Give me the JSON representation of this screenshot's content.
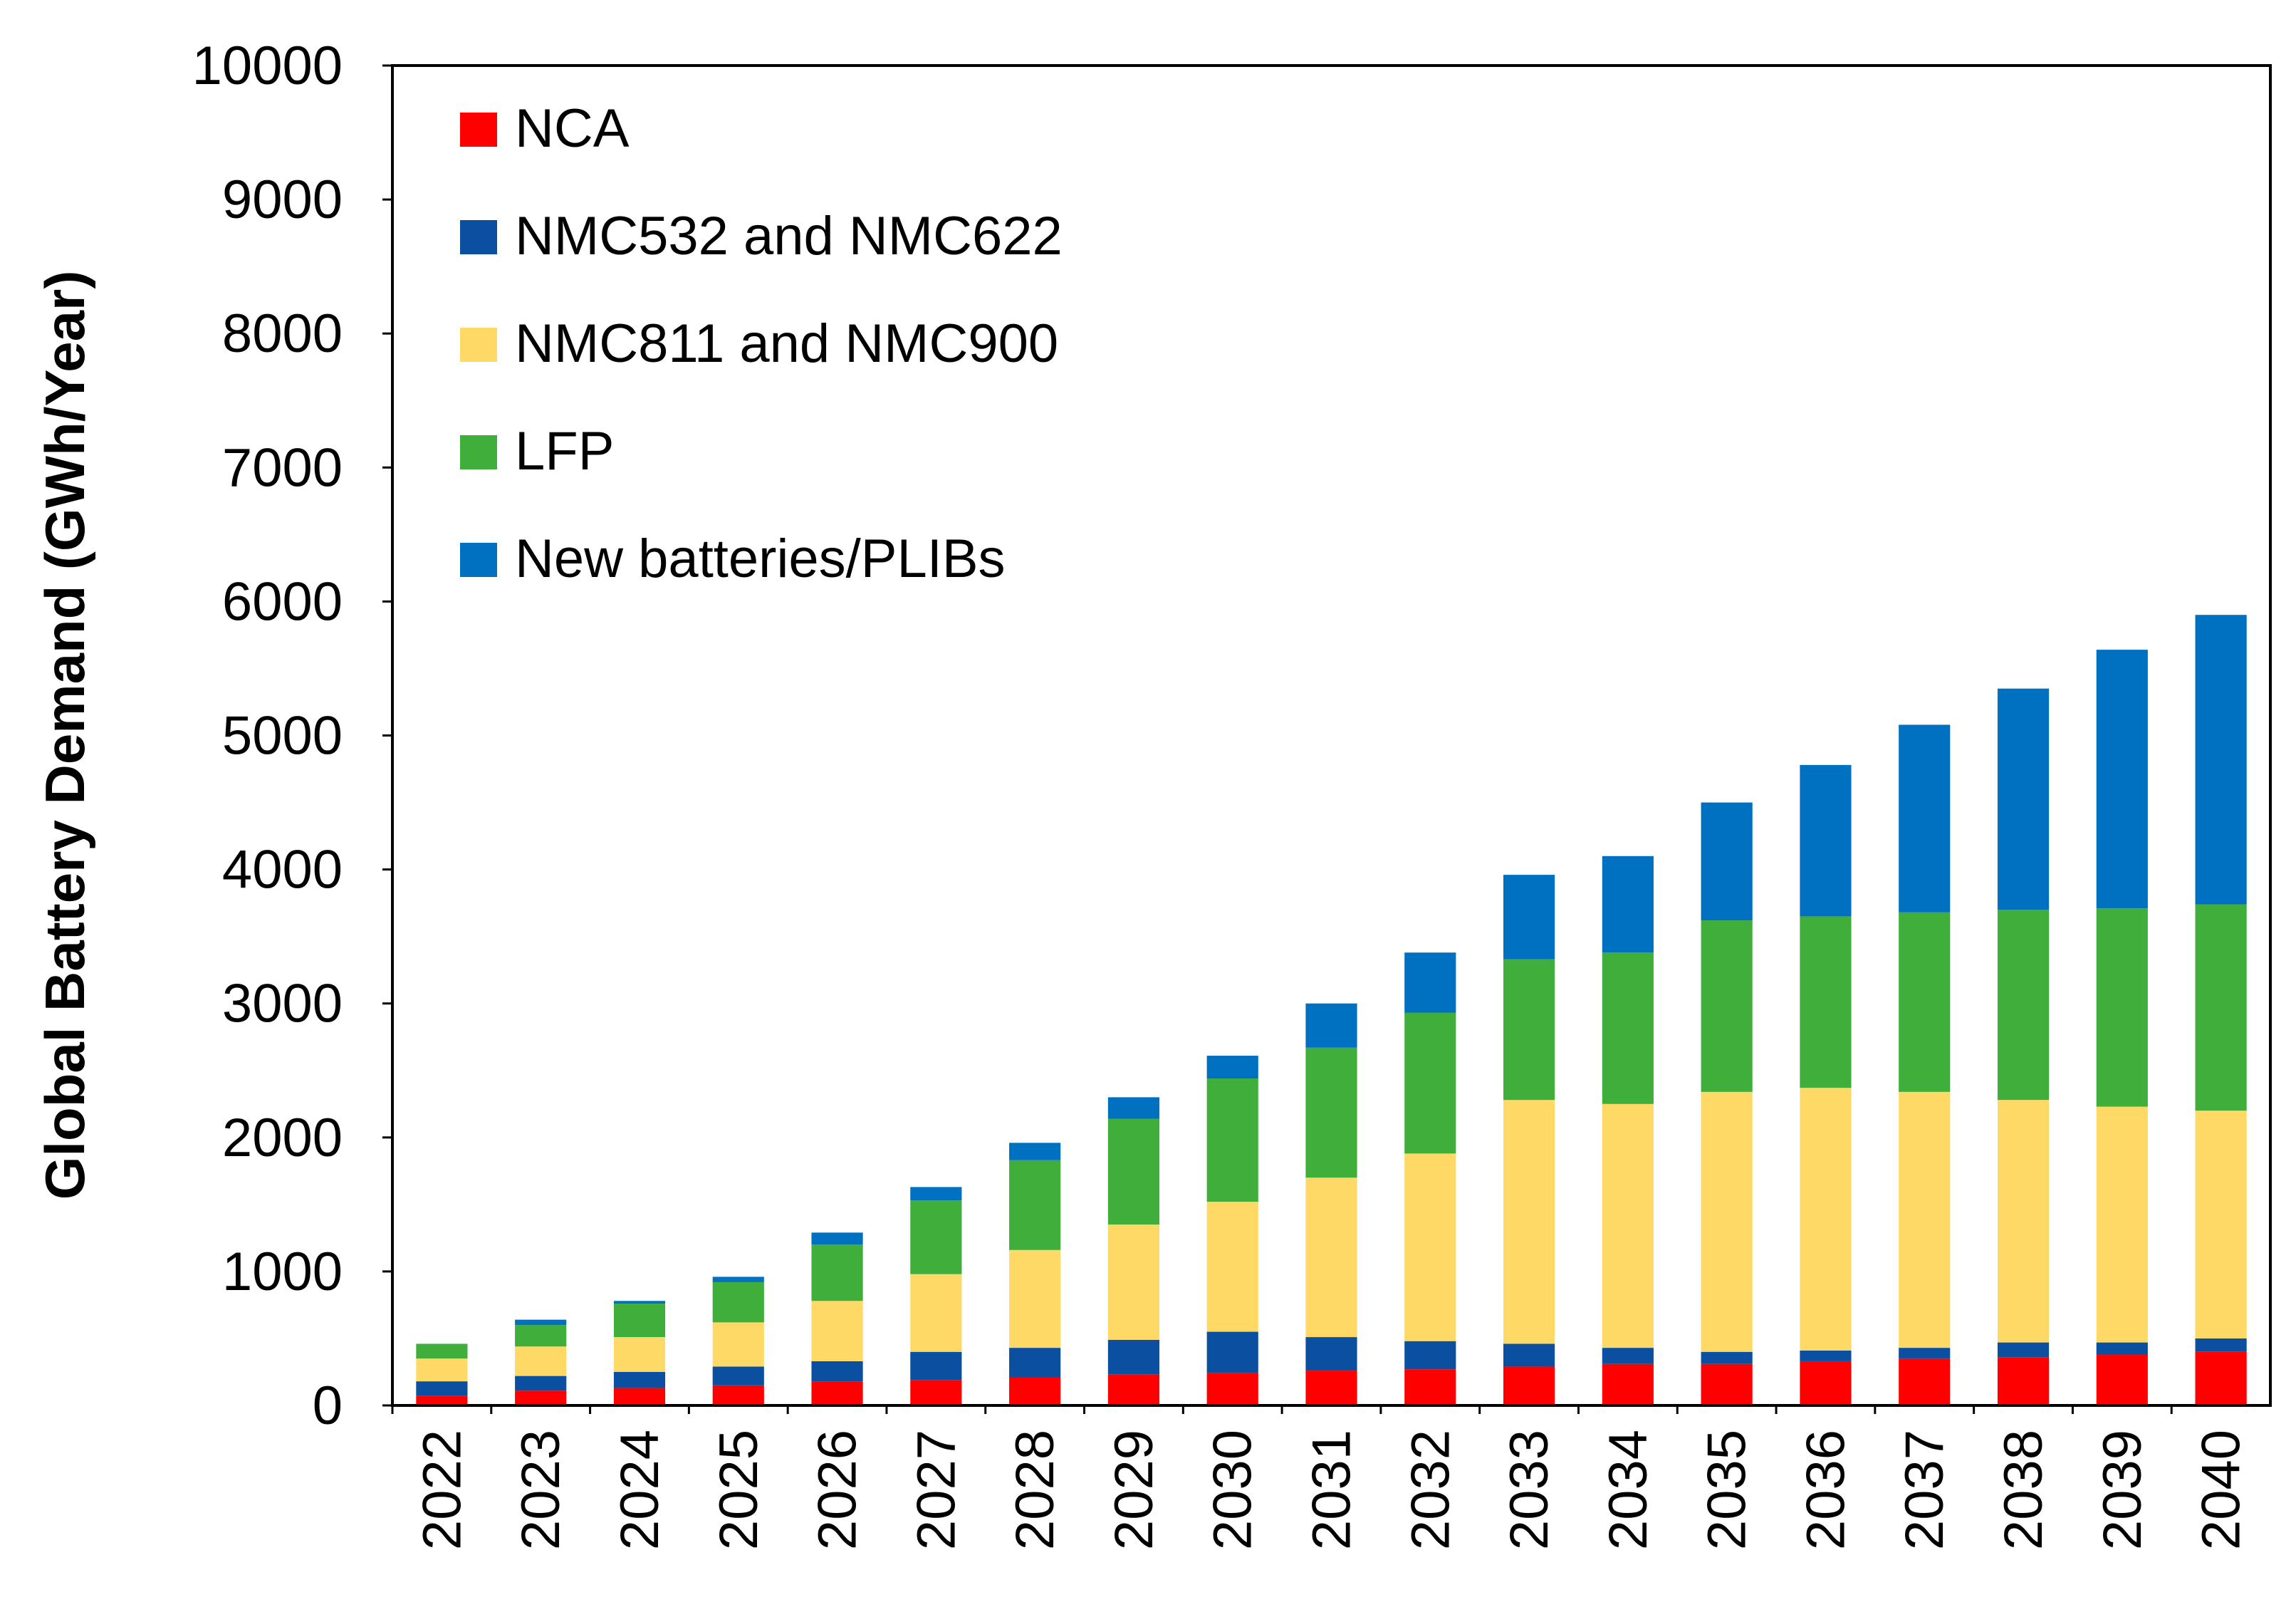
{
  "chart_data": {
    "type": "bar",
    "stacked": true,
    "title": "",
    "xlabel": "",
    "ylabel": "Global Battery Demand  (GWh/Year)",
    "ylim": [
      0,
      10000
    ],
    "yticks": [
      0,
      1000,
      2000,
      3000,
      4000,
      5000,
      6000,
      7000,
      8000,
      9000,
      10000
    ],
    "grid": false,
    "legend_position": "top-left",
    "categories": [
      "2022",
      "2023",
      "2024",
      "2025",
      "2026",
      "2027",
      "2028",
      "2029",
      "2030",
      "2031",
      "2032",
      "2033",
      "2034",
      "2035",
      "2036",
      "2037",
      "2038",
      "2039",
      "2040"
    ],
    "series": [
      {
        "name": "NCA",
        "color": "#ff0000",
        "values": [
          70,
          110,
          130,
          150,
          180,
          190,
          210,
          230,
          240,
          260,
          270,
          290,
          310,
          310,
          330,
          350,
          360,
          380,
          400
        ]
      },
      {
        "name": "NMC532 and NMC622",
        "color": "#0b4fa0",
        "values": [
          110,
          110,
          120,
          140,
          150,
          210,
          220,
          260,
          310,
          250,
          210,
          170,
          120,
          90,
          80,
          80,
          110,
          90,
          100
        ]
      },
      {
        "name": "NMC811 and NMC900",
        "color": "#ffd966",
        "values": [
          170,
          220,
          260,
          330,
          450,
          580,
          730,
          860,
          970,
          1190,
          1400,
          1820,
          1820,
          1940,
          1960,
          1910,
          1810,
          1760,
          1700
        ]
      },
      {
        "name": "LFP",
        "color": "#3fae3b",
        "values": [
          110,
          160,
          250,
          300,
          420,
          550,
          670,
          790,
          920,
          970,
          1050,
          1050,
          1130,
          1280,
          1280,
          1340,
          1420,
          1480,
          1540
        ]
      },
      {
        "name": "New batteries/PLIBs",
        "color": "#0070c0",
        "values": [
          0,
          40,
          20,
          40,
          90,
          100,
          130,
          160,
          170,
          330,
          450,
          630,
          720,
          880,
          1130,
          1400,
          1650,
          1930,
          2160
        ]
      }
    ]
  }
}
